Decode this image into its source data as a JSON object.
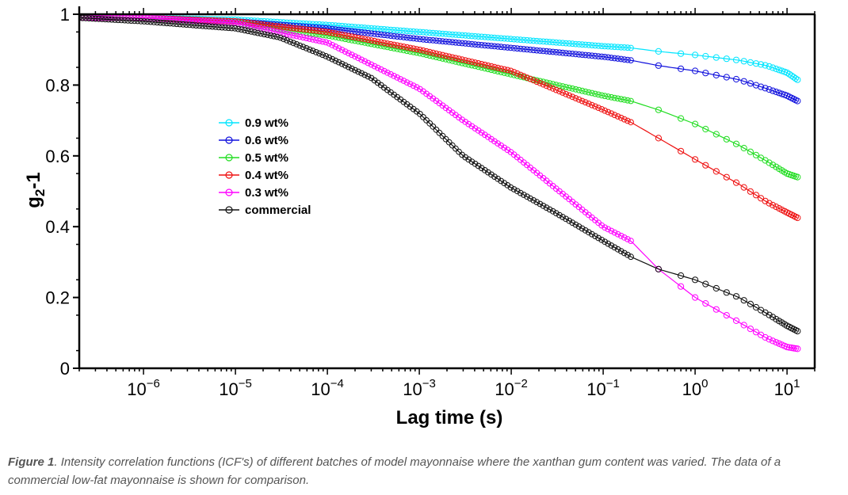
{
  "chart_data": {
    "type": "line",
    "xscale": "log",
    "xlabel": "Lag time (s)",
    "ylabel_main": "g",
    "ylabel_sub": "2",
    "ylabel_tail": "-1",
    "xlim": [
      2e-07,
      20
    ],
    "ylim": [
      0,
      1
    ],
    "x_ticks": [
      {
        "value": 1e-06,
        "base": "10",
        "exp": "−6"
      },
      {
        "value": 1e-05,
        "base": "10",
        "exp": "−5"
      },
      {
        "value": 0.0001,
        "base": "10",
        "exp": "−4"
      },
      {
        "value": 0.001,
        "base": "10",
        "exp": "−3"
      },
      {
        "value": 0.01,
        "base": "10",
        "exp": "−2"
      },
      {
        "value": 0.1,
        "base": "10",
        "exp": "−1"
      },
      {
        "value": 1,
        "base": "10",
        "exp": "0"
      },
      {
        "value": 10,
        "base": "10",
        "exp": "1"
      }
    ],
    "y_ticks": [
      {
        "value": 0,
        "label": "0"
      },
      {
        "value": 0.2,
        "label": "0.2"
      },
      {
        "value": 0.4,
        "label": "0.4"
      },
      {
        "value": 0.6,
        "label": "0.6"
      },
      {
        "value": 0.8,
        "label": "0.8"
      },
      {
        "value": 1,
        "label": "1"
      }
    ],
    "legend_position": "center-left",
    "series": [
      {
        "name": "0.9 wt%",
        "color": "#00e5ff",
        "x": [
          2e-07,
          1e-06,
          1e-05,
          0.0001,
          0.001,
          0.01,
          0.1,
          0.2,
          0.4,
          1,
          3,
          6,
          10,
          13
        ],
        "y": [
          0.99,
          0.99,
          0.985,
          0.97,
          0.95,
          0.93,
          0.91,
          0.905,
          0.895,
          0.885,
          0.87,
          0.855,
          0.835,
          0.815
        ]
      },
      {
        "name": "0.6 wt%",
        "color": "#1010dd",
        "x": [
          2e-07,
          1e-06,
          1e-05,
          0.0001,
          0.001,
          0.01,
          0.1,
          0.2,
          0.4,
          1,
          3,
          6,
          10,
          13
        ],
        "y": [
          0.99,
          0.99,
          0.98,
          0.96,
          0.93,
          0.905,
          0.88,
          0.87,
          0.855,
          0.84,
          0.815,
          0.79,
          0.77,
          0.755
        ]
      },
      {
        "name": "0.5 wt%",
        "color": "#22dd22",
        "x": [
          2e-07,
          1e-06,
          1e-05,
          0.0001,
          0.001,
          0.01,
          0.1,
          0.2,
          0.4,
          1,
          3,
          6,
          10,
          13
        ],
        "y": [
          0.99,
          0.99,
          0.975,
          0.94,
          0.89,
          0.83,
          0.77,
          0.755,
          0.73,
          0.69,
          0.63,
          0.585,
          0.55,
          0.54
        ]
      },
      {
        "name": "0.4 wt%",
        "color": "#ee1111",
        "x": [
          2e-07,
          1e-06,
          1e-05,
          0.0001,
          0.001,
          0.01,
          0.1,
          0.2,
          0.4,
          1,
          3,
          6,
          10,
          13
        ],
        "y": [
          0.99,
          0.99,
          0.98,
          0.95,
          0.9,
          0.84,
          0.73,
          0.695,
          0.65,
          0.59,
          0.52,
          0.47,
          0.44,
          0.425
        ]
      },
      {
        "name": "0.3 wt%",
        "color": "#ff00ff",
        "x": [
          2e-07,
          1e-06,
          1e-05,
          0.0001,
          0.001,
          0.003,
          0.01,
          0.03,
          0.1,
          0.2,
          0.4,
          1,
          3,
          6,
          10,
          13
        ],
        "y": [
          0.99,
          0.99,
          0.975,
          0.92,
          0.79,
          0.7,
          0.61,
          0.51,
          0.4,
          0.36,
          0.28,
          0.2,
          0.13,
          0.085,
          0.06,
          0.055
        ]
      },
      {
        "name": "commercial",
        "color": "#111111",
        "x": [
          2e-07,
          1e-06,
          1e-05,
          3e-05,
          0.0001,
          0.0003,
          0.001,
          0.003,
          0.01,
          0.03,
          0.1,
          0.2,
          0.4,
          1,
          3,
          6,
          10,
          13
        ],
        "y": [
          0.99,
          0.98,
          0.96,
          0.935,
          0.88,
          0.82,
          0.72,
          0.6,
          0.51,
          0.44,
          0.36,
          0.315,
          0.28,
          0.25,
          0.2,
          0.155,
          0.12,
          0.105
        ]
      }
    ]
  },
  "caption": {
    "label": "Figure 1",
    "text": ". Intensity correlation functions (ICF's) of different batches of model mayonnaise where the xanthan gum content was varied. The data of a commercial low-fat mayonnaise is shown for comparison."
  }
}
